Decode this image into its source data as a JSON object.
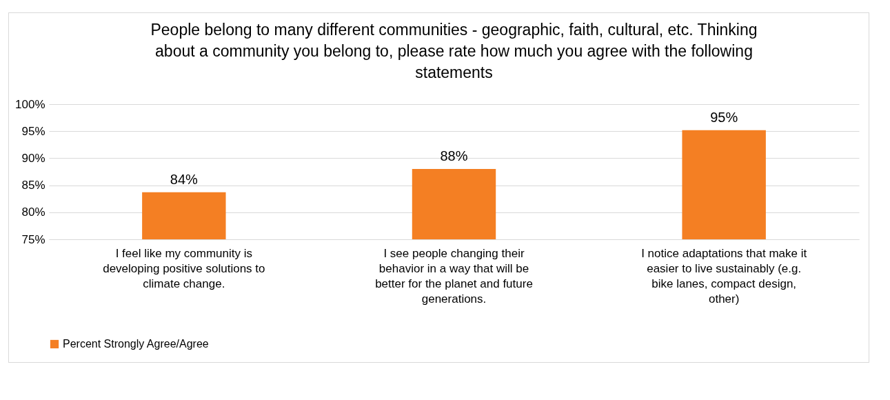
{
  "chart_data": {
    "type": "bar",
    "title": "People belong to many different communities - geographic, faith, cultural, etc. Thinking about a community you belong to, please rate how much you agree with the following statements",
    "categories": [
      "I feel like my community is developing positive solutions to climate change.",
      "I see people changing their behavior in a way that will be better for the planet and future generations.",
      "I notice adaptations that make it easier to live sustainably (e.g. bike lanes, compact design, other)"
    ],
    "series": [
      {
        "name": "Percent Strongly Agree/Agree",
        "color": "#f47f23",
        "values": [
          83.7,
          88,
          95.2
        ],
        "value_labels": [
          "84%",
          "88%",
          "95%"
        ]
      }
    ],
    "ylim": [
      75,
      100
    ],
    "yticks": [
      {
        "value": 75,
        "label": "75%"
      },
      {
        "value": 80,
        "label": "80%"
      },
      {
        "value": 85,
        "label": "85%"
      },
      {
        "value": 90,
        "label": "90%"
      },
      {
        "value": 95,
        "label": "95%"
      },
      {
        "value": 100,
        "label": "100%"
      }
    ],
    "grid": "y",
    "legend": "bottom"
  }
}
